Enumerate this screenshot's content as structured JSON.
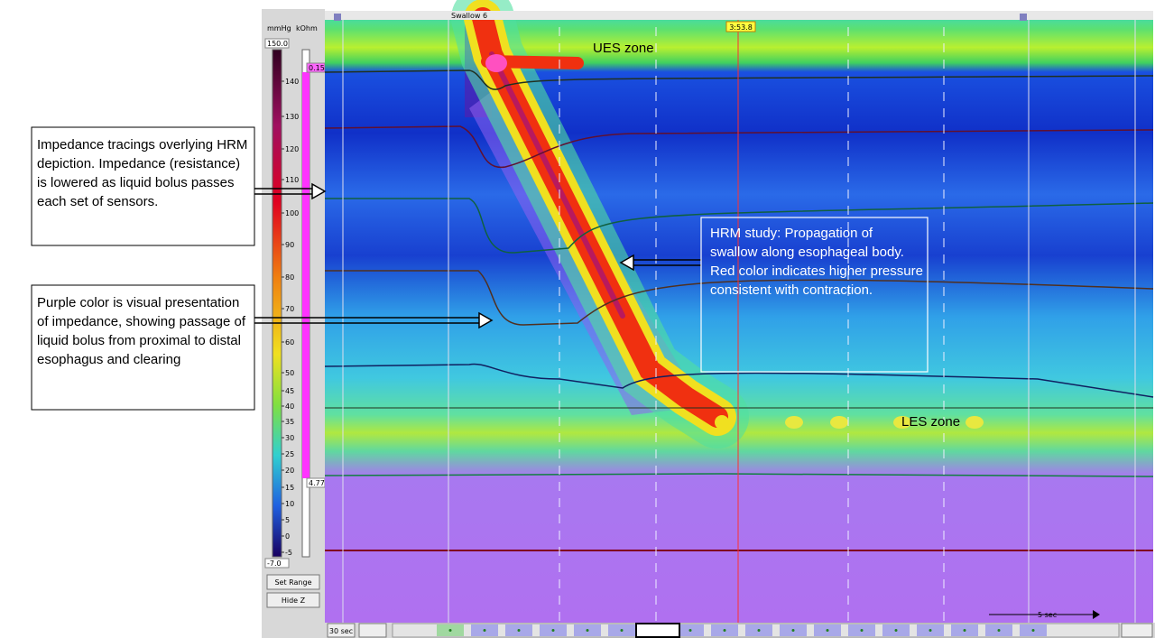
{
  "annotations": {
    "impedance_tracings": "Impedance tracings overlying HRM depiction. Impedance (resistance) is lowered as liquid bolus passes each set of sensors.",
    "purple_color": "Purple color is visual presentation of impedance, showing passage of liquid bolus from proximal to distal esophagus and clearing",
    "hrm_study": "HRM study: Propagation of swallow along esophageal body. Red color indicates higher pressure consistent with contraction.",
    "ues_zone": "UES zone",
    "les_zone": "LES zone"
  },
  "scale_panel": {
    "pressure_unit": "mmHg",
    "impedance_unit": "kOhm",
    "pressure_max": "150.0",
    "pressure_min": "-7.0",
    "pressure_ticks": [
      "140",
      "130",
      "120",
      "110",
      "100",
      "90",
      "80",
      "70",
      "60",
      "50",
      "45",
      "40",
      "35",
      "30",
      "25",
      "20",
      "15",
      "10",
      "5",
      "0",
      "-5"
    ],
    "impedance_top": "0.15",
    "impedance_bottom": "4.77",
    "buttons": [
      "Set Range",
      "Hide Z"
    ]
  },
  "plot": {
    "swallow_label": "Swallow 6",
    "time_marker": "3:53.8",
    "scale_bar": "5 sec"
  },
  "toolbar": {
    "window_button": "30 sec"
  }
}
